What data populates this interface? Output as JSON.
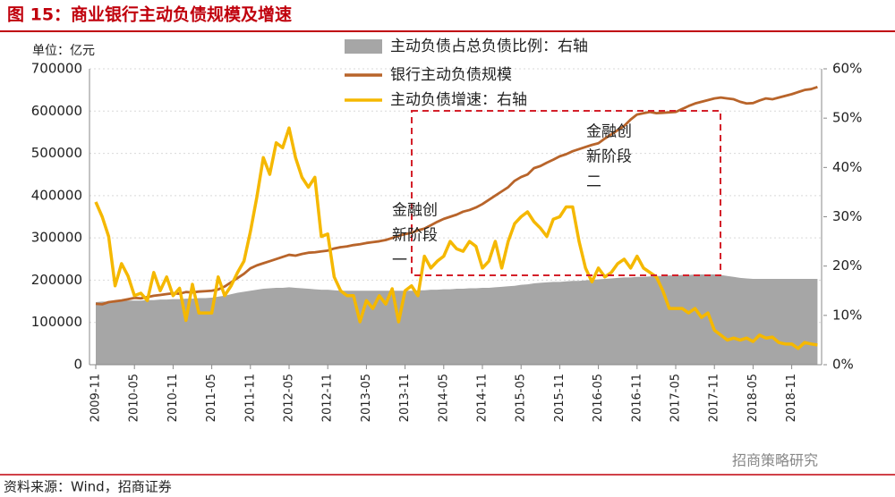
{
  "chart_data": {
    "type": "line",
    "title": "图 15：商业银行主动负债规模及增速",
    "y_axis_label": "单位：亿元",
    "source": "资料来源：Wind，招商证券",
    "watermark": "招商策略研究",
    "annotations": [
      {
        "lines": [
          "金融创",
          "新阶段",
          "一"
        ]
      },
      {
        "lines": [
          "金融创",
          "新阶段",
          "二"
        ]
      }
    ],
    "categories": [
      "2009-11",
      null,
      null,
      null,
      null,
      null,
      "2010-05",
      null,
      null,
      null,
      null,
      null,
      "2010-11",
      null,
      null,
      null,
      null,
      null,
      "2011-05",
      null,
      null,
      null,
      null,
      null,
      "2011-11",
      null,
      null,
      null,
      null,
      null,
      "2012-05",
      null,
      null,
      null,
      null,
      null,
      "2012-11",
      null,
      null,
      null,
      null,
      null,
      "2013-05",
      null,
      null,
      null,
      null,
      null,
      "2013-11",
      null,
      null,
      null,
      null,
      null,
      "2014-05",
      null,
      null,
      null,
      null,
      null,
      "2014-11",
      null,
      null,
      null,
      null,
      null,
      "2015-05",
      null,
      null,
      null,
      null,
      null,
      "2015-11",
      null,
      null,
      null,
      null,
      null,
      "2016-05",
      null,
      null,
      null,
      null,
      null,
      "2016-11",
      null,
      null,
      null,
      null,
      null,
      "2017-05",
      null,
      null,
      null,
      null,
      null,
      "2017-11",
      null,
      null,
      null,
      null,
      null,
      "2018-05",
      null,
      null,
      null,
      null,
      null,
      "2018-11",
      null,
      null,
      null,
      null
    ],
    "series": [
      {
        "name": "主动负债占总负债比例：右轴",
        "type": "area",
        "axis": "y2",
        "color": "#a6a6a6",
        "values": [
          12.7,
          12.8,
          12.8,
          12.9,
          12.9,
          13,
          13,
          13,
          13.1,
          13.1,
          13.2,
          13.2,
          13.3,
          13.3,
          13.4,
          13.4,
          13.5,
          13.5,
          13.6,
          13.8,
          14,
          14.3,
          14.6,
          14.8,
          15,
          15.2,
          15.4,
          15.5,
          15.6,
          15.6,
          15.7,
          15.6,
          15.5,
          15.4,
          15.3,
          15.2,
          15.2,
          15.1,
          15,
          15,
          15,
          15,
          15,
          15,
          15,
          15,
          15,
          15,
          15,
          15,
          15.1,
          15.1,
          15.2,
          15.2,
          15.3,
          15.3,
          15.4,
          15.4,
          15.5,
          15.5,
          15.6,
          15.6,
          15.7,
          15.8,
          15.9,
          16,
          16.2,
          16.3,
          16.5,
          16.6,
          16.7,
          16.8,
          16.8,
          16.9,
          17,
          17,
          17.1,
          17.2,
          17.3,
          17.4,
          17.5,
          17.6,
          17.7,
          17.7,
          17.8,
          17.8,
          17.9,
          18,
          18,
          18.1,
          18.1,
          18.2,
          18.2,
          18.3,
          18.3,
          18.3,
          18.3,
          18.2,
          18,
          17.8,
          17.6,
          17.5,
          17.4,
          17.4,
          17.4,
          17.4,
          17.4,
          17.4,
          17.4,
          17.4,
          17.4,
          17.4,
          17.4
        ]
      },
      {
        "name": "银行主动负债规模",
        "type": "line",
        "axis": "y",
        "color": "#b8642a",
        "values": [
          144000,
          143000,
          148000,
          150000,
          152000,
          155000,
          158000,
          157000,
          160000,
          163000,
          165000,
          167000,
          169000,
          168000,
          172000,
          171000,
          173000,
          174000,
          175000,
          178000,
          185000,
          195000,
          205000,
          215000,
          228000,
          235000,
          240000,
          245000,
          250000,
          255000,
          260000,
          258000,
          262000,
          265000,
          266000,
          268000,
          270000,
          275000,
          278000,
          280000,
          283000,
          285000,
          288000,
          290000,
          292000,
          295000,
          300000,
          305000,
          309000,
          312000,
          318000,
          322000,
          330000,
          338000,
          345000,
          350000,
          355000,
          362000,
          366000,
          372000,
          380000,
          390000,
          400000,
          410000,
          420000,
          435000,
          444000,
          450000,
          465000,
          470000,
          478000,
          485000,
          493000,
          498000,
          505000,
          510000,
          515000,
          520000,
          524000,
          535000,
          545000,
          555000,
          565000,
          580000,
          592000,
          595000,
          598000,
          595000,
          596000,
          597000,
          598000,
          605000,
          612000,
          618000,
          622000,
          626000,
          630000,
          632000,
          630000,
          628000,
          622000,
          618000,
          619000,
          625000,
          630000,
          628000,
          632000,
          636000,
          640000,
          645000,
          650000,
          652000,
          657000
        ]
      },
      {
        "name": "主动负债增速：右轴",
        "type": "line",
        "axis": "y2",
        "color": "#f5b800",
        "values": [
          33,
          30,
          26,
          16,
          20.5,
          18,
          14,
          14.5,
          13,
          18.7,
          15,
          17.8,
          14,
          15.5,
          9,
          16.3,
          10.5,
          10.5,
          10.5,
          17.8,
          14,
          16,
          18.7,
          21,
          27,
          34,
          42,
          38.6,
          45,
          44,
          48,
          42,
          38,
          36,
          38,
          26,
          26.5,
          17.8,
          15,
          14,
          14,
          8.7,
          13,
          11.4,
          14,
          12.3,
          15.4,
          8.7,
          15,
          16,
          14,
          22,
          19.6,
          21,
          22,
          25,
          23.5,
          23,
          25,
          24,
          19.6,
          21,
          25,
          19.6,
          25,
          28.6,
          30,
          31,
          29,
          27.7,
          26,
          29.5,
          30,
          32,
          32,
          25,
          19.6,
          16.8,
          19.6,
          17.8,
          18.7,
          20.5,
          21.4,
          19.6,
          22,
          19.6,
          18.7,
          17.8,
          15,
          11.4,
          11.4,
          11.4,
          10.5,
          11.4,
          9.6,
          10.5,
          7,
          6,
          5,
          5.4,
          5,
          5.4,
          4.7,
          6,
          5.4,
          5.6,
          4.5,
          4.2,
          4.2,
          3.3,
          4.5,
          4.2,
          4
        ]
      }
    ],
    "ylim": [
      0,
      700000
    ],
    "yticks": [
      0,
      100000,
      200000,
      300000,
      400000,
      500000,
      600000,
      700000
    ],
    "y2lim": [
      0,
      60
    ],
    "y2ticks": [
      {
        "value": 0,
        "label": "0%"
      },
      {
        "value": 10,
        "label": "10%"
      },
      {
        "value": 20,
        "label": "20%"
      },
      {
        "value": 30,
        "label": "30%"
      },
      {
        "value": 40,
        "label": "40%"
      },
      {
        "value": 50,
        "label": "50%"
      },
      {
        "value": 60,
        "label": "60%"
      }
    ],
    "grid": true,
    "legend": "top"
  }
}
